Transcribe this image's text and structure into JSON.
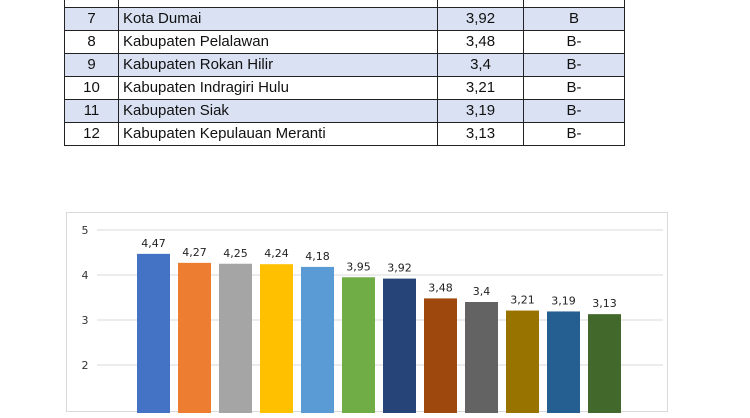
{
  "table": {
    "rows": [
      {
        "no": "7",
        "name": "Kota Dumai",
        "score": "3,92",
        "grade": "B"
      },
      {
        "no": "8",
        "name": "Kabupaten Pelalawan",
        "score": "3,48",
        "grade": "B-"
      },
      {
        "no": "9",
        "name": "Kabupaten Rokan Hilir",
        "score": "3,4",
        "grade": "B-"
      },
      {
        "no": "10",
        "name": "Kabupaten Indragiri Hulu",
        "score": "3,21",
        "grade": "B-"
      },
      {
        "no": "11",
        "name": "Kabupaten Siak",
        "score": "3,19",
        "grade": "B-"
      },
      {
        "no": "12",
        "name": "Kabupaten Kepulauan Meranti",
        "score": "3,13",
        "grade": "B-"
      }
    ]
  },
  "chart_data": {
    "type": "bar",
    "values": [
      4.47,
      4.27,
      4.25,
      4.24,
      4.18,
      3.95,
      3.92,
      3.48,
      3.4,
      3.21,
      3.19,
      3.13
    ],
    "labels": [
      "4,47",
      "4,27",
      "4,25",
      "4,24",
      "4,18",
      "3,95",
      "3,92",
      "3,48",
      "3,4",
      "3,21",
      "3,19",
      "3,13"
    ],
    "colors": [
      "#4472c4",
      "#ed7d31",
      "#a5a5a5",
      "#ffc000",
      "#5b9bd5",
      "#70ad47",
      "#264478",
      "#9e480e",
      "#636363",
      "#997300",
      "#255e91",
      "#43682b"
    ],
    "yticks": [
      "2",
      "3",
      "4",
      "5"
    ],
    "ylim": [
      1,
      5
    ],
    "grid": true
  }
}
